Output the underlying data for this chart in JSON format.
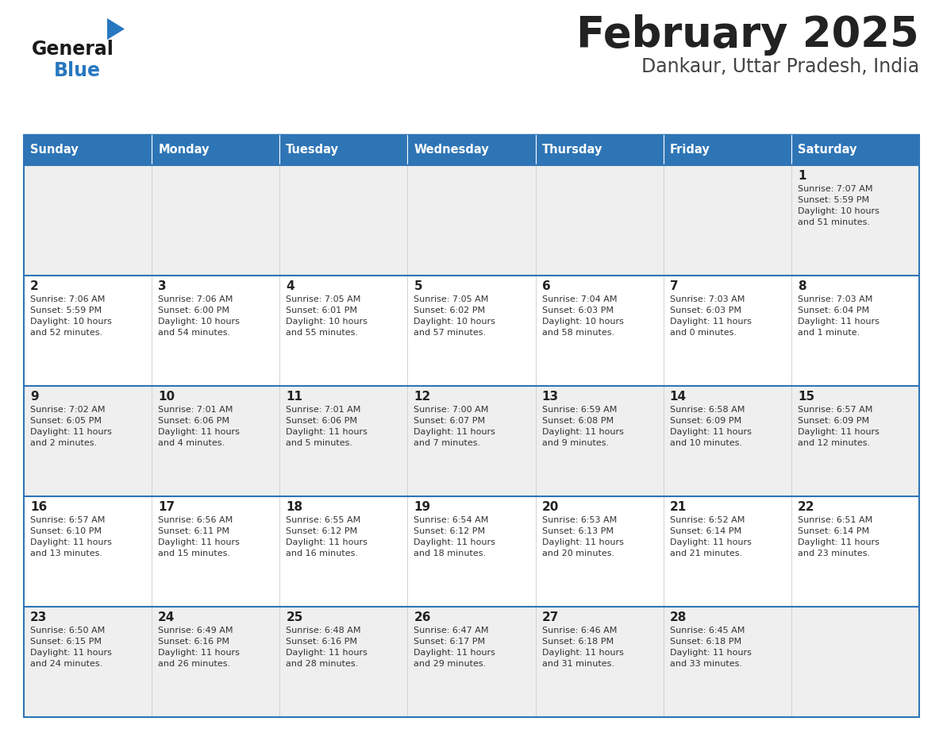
{
  "title": "February 2025",
  "subtitle": "Dankaur, Uttar Pradesh, India",
  "days_of_week": [
    "Sunday",
    "Monday",
    "Tuesday",
    "Wednesday",
    "Thursday",
    "Friday",
    "Saturday"
  ],
  "header_bg": "#2E75B6",
  "header_text": "#FFFFFF",
  "row_bg_odd": "#EFEFEF",
  "row_bg_even": "#FFFFFF",
  "border_color": "#2E75B6",
  "sep_color": "#2E75B6",
  "day_num_color": "#222222",
  "text_color": "#333333",
  "title_color": "#222222",
  "subtitle_color": "#444444",
  "logo_general_color": "#1A1A1A",
  "logo_blue_color": "#2878C0",
  "logo_triangle_color": "#2878C0",
  "calendar_data": [
    [
      {
        "day": null,
        "info": null
      },
      {
        "day": null,
        "info": null
      },
      {
        "day": null,
        "info": null
      },
      {
        "day": null,
        "info": null
      },
      {
        "day": null,
        "info": null
      },
      {
        "day": null,
        "info": null
      },
      {
        "day": 1,
        "info": "Sunrise: 7:07 AM\nSunset: 5:59 PM\nDaylight: 10 hours\nand 51 minutes."
      }
    ],
    [
      {
        "day": 2,
        "info": "Sunrise: 7:06 AM\nSunset: 5:59 PM\nDaylight: 10 hours\nand 52 minutes."
      },
      {
        "day": 3,
        "info": "Sunrise: 7:06 AM\nSunset: 6:00 PM\nDaylight: 10 hours\nand 54 minutes."
      },
      {
        "day": 4,
        "info": "Sunrise: 7:05 AM\nSunset: 6:01 PM\nDaylight: 10 hours\nand 55 minutes."
      },
      {
        "day": 5,
        "info": "Sunrise: 7:05 AM\nSunset: 6:02 PM\nDaylight: 10 hours\nand 57 minutes."
      },
      {
        "day": 6,
        "info": "Sunrise: 7:04 AM\nSunset: 6:03 PM\nDaylight: 10 hours\nand 58 minutes."
      },
      {
        "day": 7,
        "info": "Sunrise: 7:03 AM\nSunset: 6:03 PM\nDaylight: 11 hours\nand 0 minutes."
      },
      {
        "day": 8,
        "info": "Sunrise: 7:03 AM\nSunset: 6:04 PM\nDaylight: 11 hours\nand 1 minute."
      }
    ],
    [
      {
        "day": 9,
        "info": "Sunrise: 7:02 AM\nSunset: 6:05 PM\nDaylight: 11 hours\nand 2 minutes."
      },
      {
        "day": 10,
        "info": "Sunrise: 7:01 AM\nSunset: 6:06 PM\nDaylight: 11 hours\nand 4 minutes."
      },
      {
        "day": 11,
        "info": "Sunrise: 7:01 AM\nSunset: 6:06 PM\nDaylight: 11 hours\nand 5 minutes."
      },
      {
        "day": 12,
        "info": "Sunrise: 7:00 AM\nSunset: 6:07 PM\nDaylight: 11 hours\nand 7 minutes."
      },
      {
        "day": 13,
        "info": "Sunrise: 6:59 AM\nSunset: 6:08 PM\nDaylight: 11 hours\nand 9 minutes."
      },
      {
        "day": 14,
        "info": "Sunrise: 6:58 AM\nSunset: 6:09 PM\nDaylight: 11 hours\nand 10 minutes."
      },
      {
        "day": 15,
        "info": "Sunrise: 6:57 AM\nSunset: 6:09 PM\nDaylight: 11 hours\nand 12 minutes."
      }
    ],
    [
      {
        "day": 16,
        "info": "Sunrise: 6:57 AM\nSunset: 6:10 PM\nDaylight: 11 hours\nand 13 minutes."
      },
      {
        "day": 17,
        "info": "Sunrise: 6:56 AM\nSunset: 6:11 PM\nDaylight: 11 hours\nand 15 minutes."
      },
      {
        "day": 18,
        "info": "Sunrise: 6:55 AM\nSunset: 6:12 PM\nDaylight: 11 hours\nand 16 minutes."
      },
      {
        "day": 19,
        "info": "Sunrise: 6:54 AM\nSunset: 6:12 PM\nDaylight: 11 hours\nand 18 minutes."
      },
      {
        "day": 20,
        "info": "Sunrise: 6:53 AM\nSunset: 6:13 PM\nDaylight: 11 hours\nand 20 minutes."
      },
      {
        "day": 21,
        "info": "Sunrise: 6:52 AM\nSunset: 6:14 PM\nDaylight: 11 hours\nand 21 minutes."
      },
      {
        "day": 22,
        "info": "Sunrise: 6:51 AM\nSunset: 6:14 PM\nDaylight: 11 hours\nand 23 minutes."
      }
    ],
    [
      {
        "day": 23,
        "info": "Sunrise: 6:50 AM\nSunset: 6:15 PM\nDaylight: 11 hours\nand 24 minutes."
      },
      {
        "day": 24,
        "info": "Sunrise: 6:49 AM\nSunset: 6:16 PM\nDaylight: 11 hours\nand 26 minutes."
      },
      {
        "day": 25,
        "info": "Sunrise: 6:48 AM\nSunset: 6:16 PM\nDaylight: 11 hours\nand 28 minutes."
      },
      {
        "day": 26,
        "info": "Sunrise: 6:47 AM\nSunset: 6:17 PM\nDaylight: 11 hours\nand 29 minutes."
      },
      {
        "day": 27,
        "info": "Sunrise: 6:46 AM\nSunset: 6:18 PM\nDaylight: 11 hours\nand 31 minutes."
      },
      {
        "day": 28,
        "info": "Sunrise: 6:45 AM\nSunset: 6:18 PM\nDaylight: 11 hours\nand 33 minutes."
      },
      {
        "day": null,
        "info": null
      }
    ]
  ]
}
